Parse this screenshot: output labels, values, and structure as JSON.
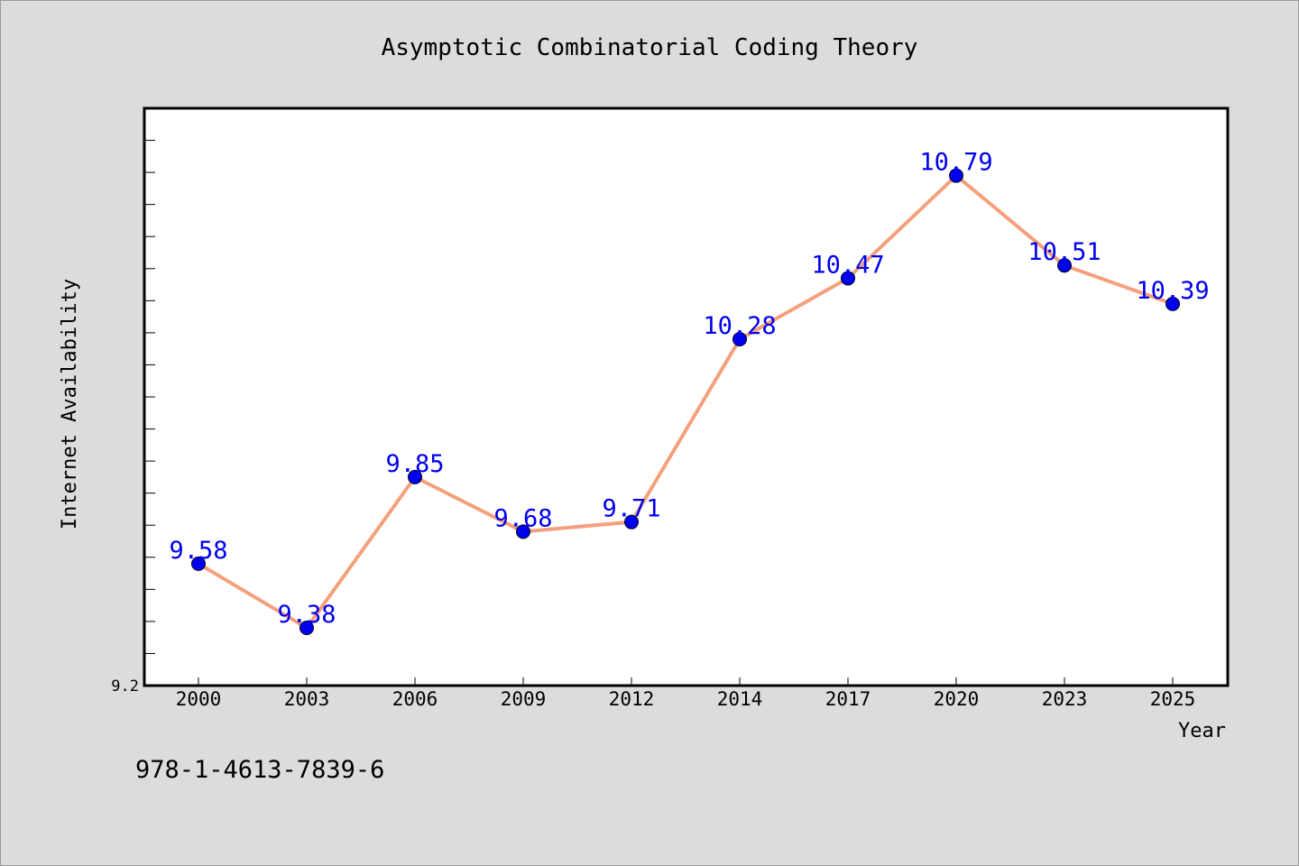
{
  "chart_data": {
    "type": "line",
    "title": "Asymptotic Combinatorial Coding Theory",
    "xlabel": "Year",
    "ylabel": "Internet Availability",
    "categories": [
      "2000",
      "2003",
      "2006",
      "2009",
      "2012",
      "2014",
      "2017",
      "2020",
      "2023",
      "2025"
    ],
    "series": [
      {
        "values": [
          9.58,
          9.38,
          9.85,
          9.68,
          9.71,
          10.28,
          10.47,
          10.79,
          10.51,
          10.39
        ]
      }
    ],
    "data_labels": [
      "9.58",
      "9.38",
      "9.85",
      "9.68",
      "9.71",
      "10.28",
      "10.47",
      "10.79",
      "10.51",
      "10.39"
    ],
    "y_tick_labels": [
      "9.2"
    ],
    "ylim": [
      9.2,
      11.0
    ],
    "grid": false,
    "colors": {
      "line": "#f4a07c",
      "marker": "#0000ee",
      "data_label": "#0000ee",
      "background": "#dcdcdc",
      "plot_background": "#ffffff"
    }
  },
  "footer": {
    "isbn": "978-1-4613-7839-6"
  }
}
